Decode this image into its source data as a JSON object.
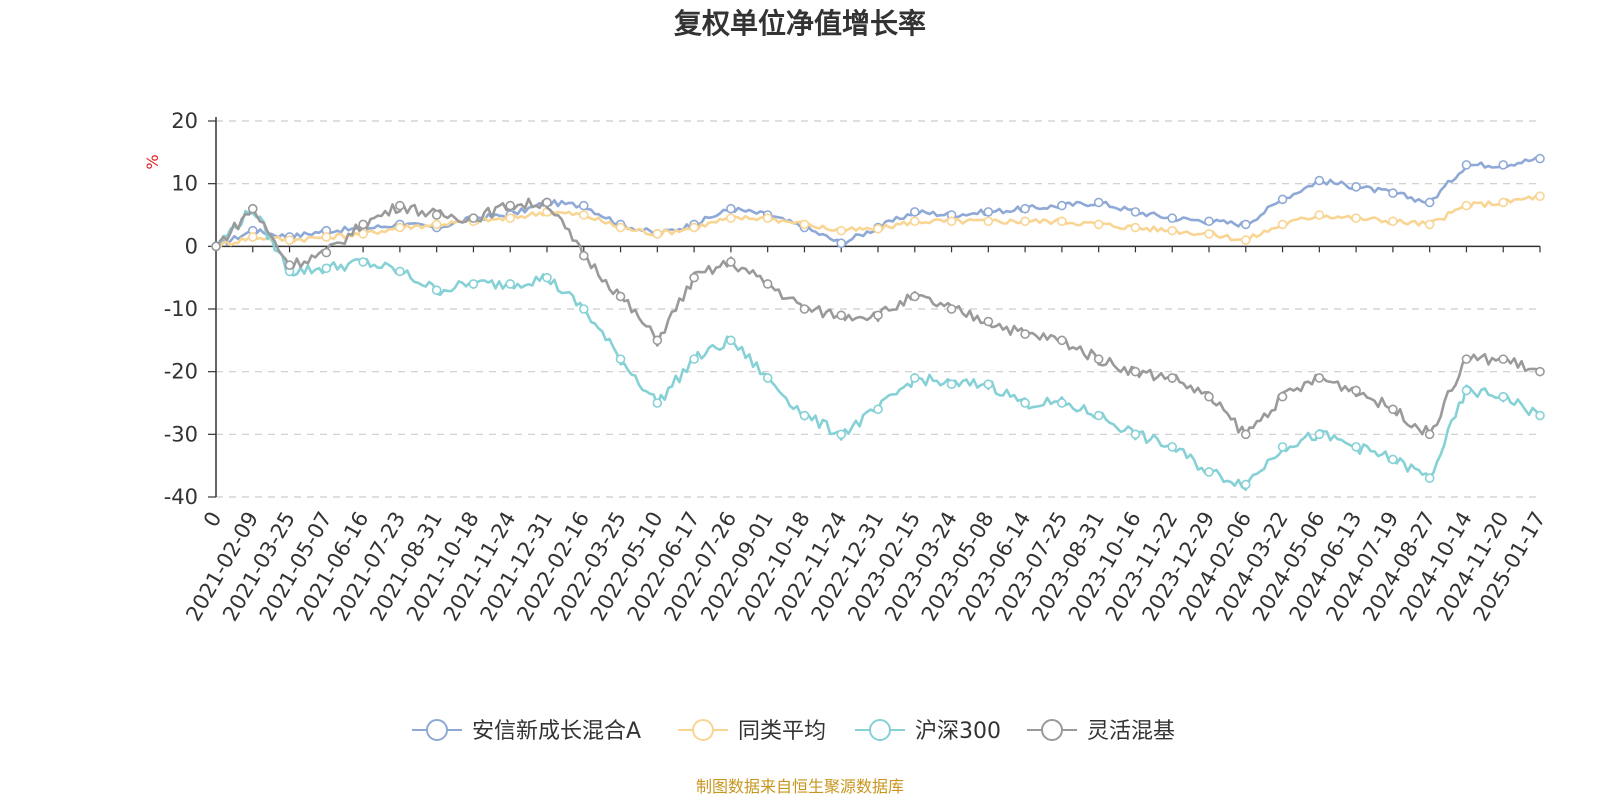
{
  "chart_data": {
    "type": "line",
    "title": "复权单位净值增长率",
    "ylabel": "%",
    "xlabel": "",
    "ylim": [
      -40,
      20
    ],
    "yticks": [
      20,
      10,
      0,
      -10,
      -20,
      -30,
      -40
    ],
    "ytick_labels": [
      "20",
      "10",
      "0",
      "-10",
      "-20",
      "-30",
      "-40"
    ],
    "grid": true,
    "legend_position": "bottom",
    "source_note": "制图数据来自恒生聚源数据库",
    "x": [
      "0",
      "2021-02-09",
      "2021-03-25",
      "2021-05-07",
      "2021-06-16",
      "2021-07-23",
      "2021-08-31",
      "2021-10-18",
      "2021-11-24",
      "2021-12-31",
      "2022-02-16",
      "2022-03-25",
      "2022-05-10",
      "2022-06-17",
      "2022-07-26",
      "2022-09-01",
      "2022-10-18",
      "2022-11-24",
      "2022-12-31",
      "2023-02-15",
      "2023-03-24",
      "2023-05-08",
      "2023-06-14",
      "2023-07-25",
      "2023-08-31",
      "2023-10-16",
      "2023-11-22",
      "2023-12-29",
      "2024-02-06",
      "2024-03-22",
      "2024-05-06",
      "2024-06-13",
      "2024-07-19",
      "2024-08-27",
      "2024-10-14",
      "2024-11-20",
      "2025-01-17"
    ],
    "series": [
      {
        "name": "安信新成长混合A",
        "color": "#8fa9d6",
        "values": [
          0,
          2.5,
          1.5,
          2.5,
          2.8,
          3.5,
          3.0,
          4.5,
          5.0,
          7.0,
          6.5,
          3.5,
          2.0,
          3.5,
          6.0,
          5.0,
          3.0,
          0.5,
          3.0,
          5.5,
          5.0,
          5.5,
          6.0,
          6.5,
          7.0,
          5.5,
          4.5,
          4.0,
          3.5,
          7.5,
          10.5,
          9.5,
          8.5,
          7.0,
          13.0,
          13.0,
          14.0
        ]
      },
      {
        "name": "同类平均",
        "color": "#f9d594",
        "values": [
          0,
          1.5,
          1.0,
          1.5,
          2.0,
          3.0,
          3.5,
          4.0,
          4.5,
          5.5,
          5.0,
          3.0,
          2.0,
          3.0,
          4.5,
          4.5,
          3.5,
          2.5,
          2.8,
          4.0,
          4.0,
          4.0,
          4.0,
          4.0,
          3.5,
          3.0,
          2.5,
          2.0,
          1.0,
          3.5,
          5.0,
          4.5,
          4.0,
          3.5,
          6.5,
          7.0,
          8.0
        ]
      },
      {
        "name": "沪深300",
        "color": "#86d1d6",
        "values": [
          0,
          6.0,
          -4.0,
          -3.5,
          -2.5,
          -4.0,
          -7.0,
          -6.0,
          -6.0,
          -5.0,
          -10.0,
          -18.0,
          -25.0,
          -18.0,
          -15.0,
          -21.0,
          -27.0,
          -30.0,
          -26.0,
          -21.0,
          -22.0,
          -22.0,
          -25.0,
          -25.0,
          -27.0,
          -30.0,
          -32.0,
          -36.0,
          -38.0,
          -32.0,
          -30.0,
          -32.0,
          -34.0,
          -37.0,
          -23.0,
          -24.0,
          -27.0
        ]
      },
      {
        "name": "灵活混基",
        "color": "#9a9a9a",
        "values": [
          0,
          6.0,
          -3.0,
          -1.0,
          3.5,
          6.5,
          5.0,
          4.5,
          6.5,
          7.0,
          -1.5,
          -8.0,
          -15.0,
          -5.0,
          -2.5,
          -6.0,
          -10.0,
          -11.0,
          -11.0,
          -8.0,
          -10.0,
          -12.0,
          -14.0,
          -15.0,
          -18.0,
          -20.0,
          -21.0,
          -24.0,
          -30.0,
          -24.0,
          -21.0,
          -23.0,
          -26.0,
          -30.0,
          -18.0,
          -18.0,
          -20.0
        ]
      }
    ]
  }
}
